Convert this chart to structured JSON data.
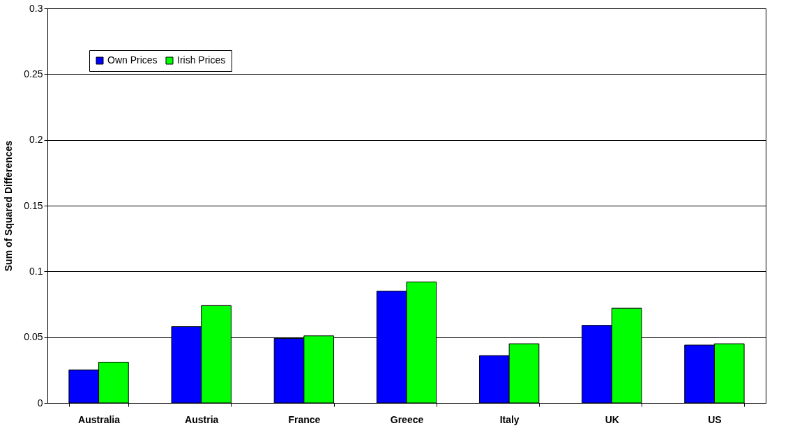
{
  "chart_data": {
    "type": "bar",
    "ylabel": "Sum of Squared Differences",
    "categories": [
      "Australia",
      "Austria",
      "France",
      "Greece",
      "Italy",
      "UK",
      "US"
    ],
    "series": [
      {
        "name": "Own Prices",
        "color": "#0000ff",
        "values": [
          0.025,
          0.058,
          0.049,
          0.085,
          0.036,
          0.059,
          0.044
        ]
      },
      {
        "name": "Irish Prices",
        "color": "#00ff00",
        "values": [
          0.031,
          0.074,
          0.051,
          0.092,
          0.045,
          0.072,
          0.045
        ]
      }
    ],
    "ylim": [
      0,
      0.3
    ],
    "yticks": [
      0,
      0.05,
      0.1,
      0.15,
      0.2,
      0.25,
      0.3
    ],
    "grid": "y",
    "legend": "top left"
  }
}
